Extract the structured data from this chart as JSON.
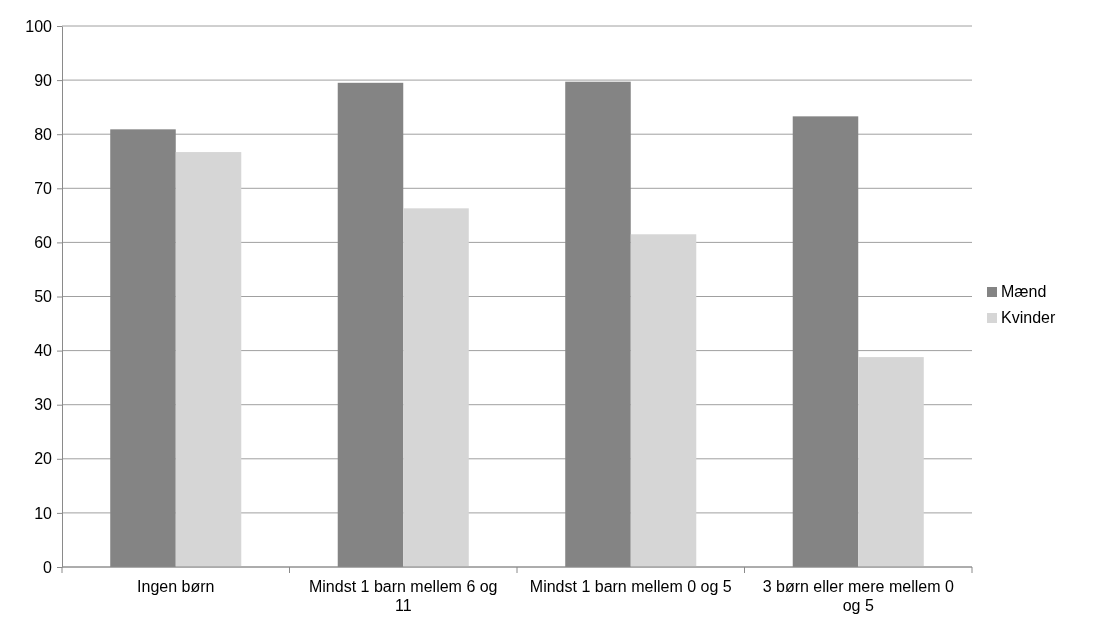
{
  "chart_data": {
    "type": "bar",
    "categories": [
      "Ingen børn",
      "Mindst 1 barn mellem 6 og 11",
      "Mindst 1 barn mellem 0 og 5",
      "3 børn eller mere mellem 0 og 5"
    ],
    "series": [
      {
        "name": "Mænd",
        "color": "#848484",
        "values": [
          80.9,
          89.5,
          89.7,
          83.3
        ]
      },
      {
        "name": "Kvinder",
        "color": "#d6d6d6",
        "values": [
          76.7,
          66.3,
          61.5,
          38.8
        ]
      }
    ],
    "ylim": [
      0,
      100
    ],
    "yticks": [
      0,
      10,
      20,
      30,
      40,
      50,
      60,
      70,
      80,
      90,
      100
    ],
    "grid": "y",
    "legend": "right"
  }
}
